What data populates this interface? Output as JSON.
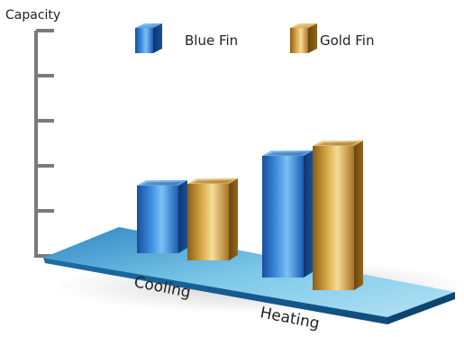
{
  "chart_data": {
    "type": "bar",
    "ylabel": "Capacity",
    "categories": [
      "Cooling",
      "Heating"
    ],
    "series": [
      {
        "name": "Blue Fin",
        "values": [
          1.5,
          2.7
        ]
      },
      {
        "name": "Gold Fin",
        "values": [
          1.7,
          3.2
        ]
      }
    ],
    "ylim": [
      0,
      5
    ],
    "grid": false,
    "legend": "top",
    "colors": {
      "Blue Fin": "#2f7fd1",
      "Gold Fin": "#c9962c",
      "platform": "#5fb3d6",
      "axis": "#7a7a7a"
    }
  }
}
